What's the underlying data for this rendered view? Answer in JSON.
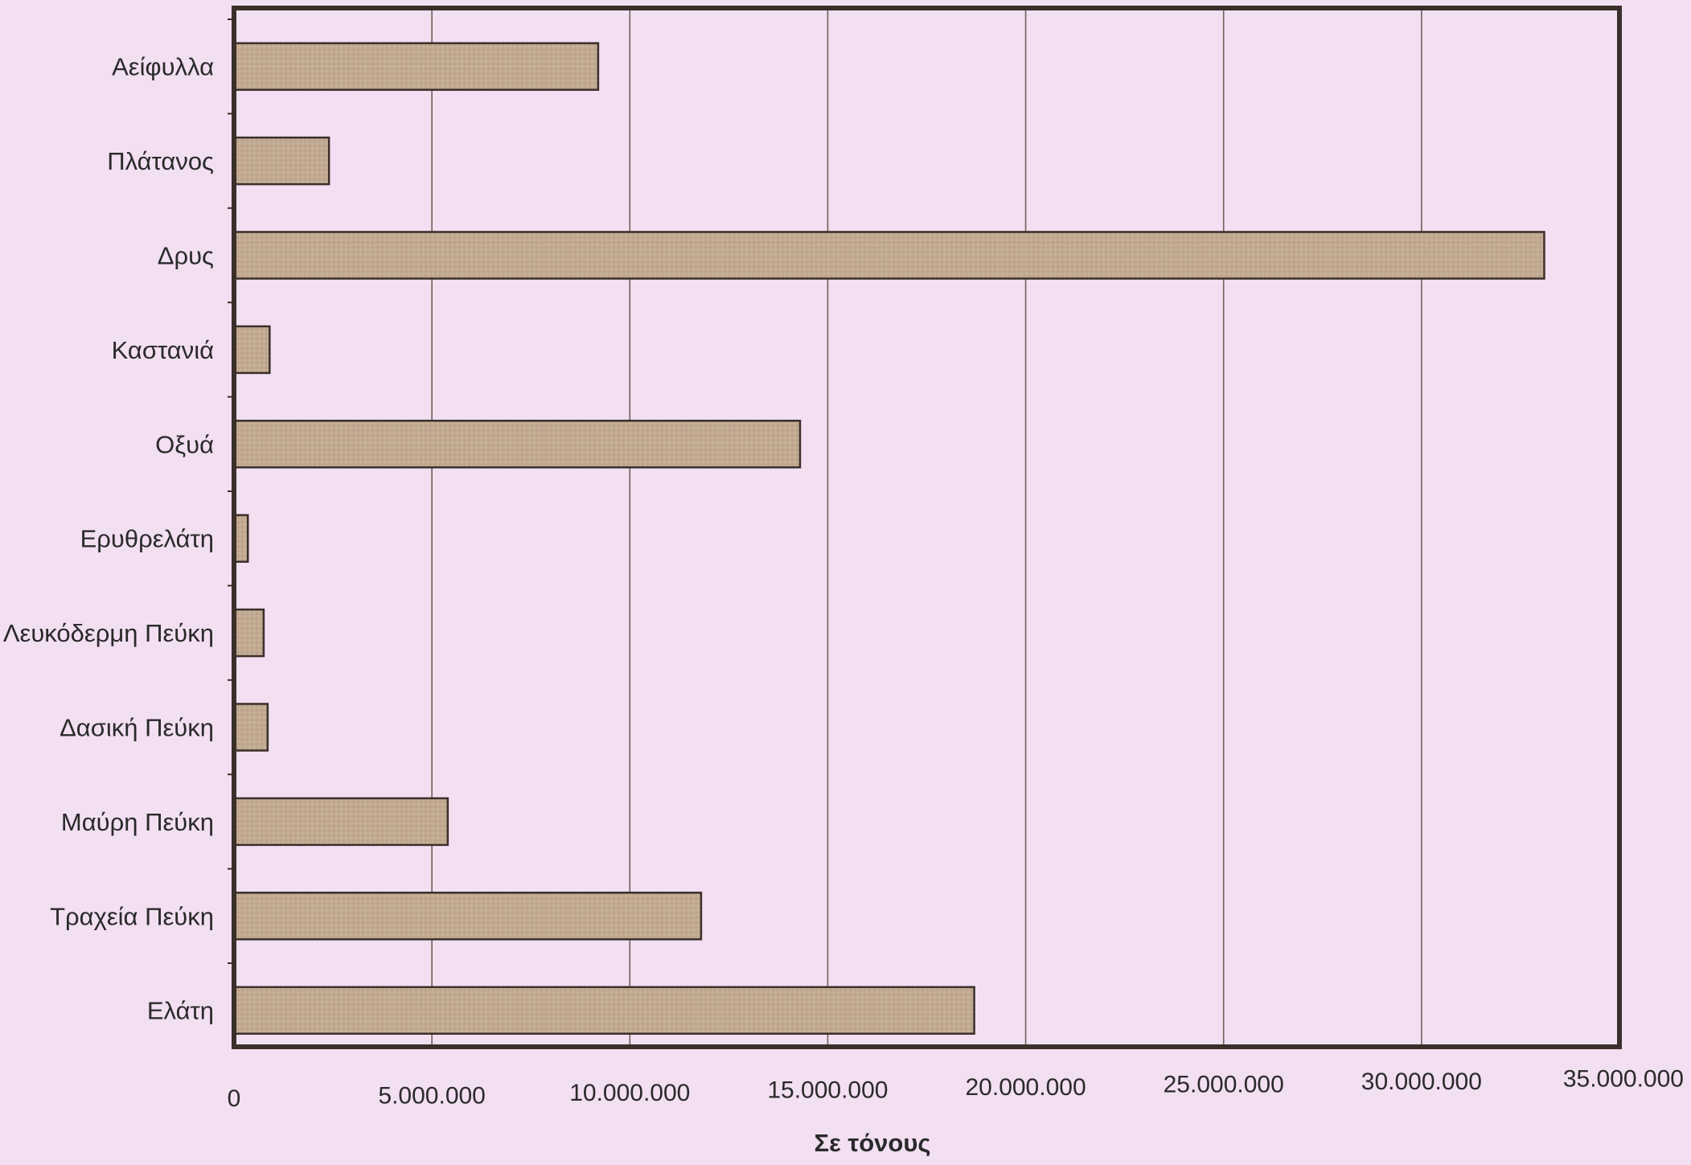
{
  "chart_data": {
    "type": "bar",
    "orientation": "horizontal",
    "categories": [
      "Αείφυλλα",
      "Πλάτανος",
      "Δρυς",
      "Καστανιά",
      "Οξυά",
      "Ερυθρελάτη",
      "Λευκόδερμη Πεύκη",
      "Δασική Πεύκη",
      "Μαύρη Πεύκη",
      "Τραχεία Πεύκη",
      "Ελάτη"
    ],
    "values": [
      9200000,
      2400000,
      33100000,
      900000,
      14300000,
      350000,
      750000,
      850000,
      5400000,
      11800000,
      18700000
    ],
    "title": "",
    "xlabel": "Σε τόνους",
    "ylabel": "",
    "xlim": [
      0,
      35000000
    ],
    "xticks": [
      0,
      5000000,
      10000000,
      15000000,
      20000000,
      25000000,
      30000000,
      35000000
    ],
    "xtick_labels": [
      "0",
      "5.000.000",
      "10.000.000",
      "15.000.000",
      "20.000.000",
      "25.000.000",
      "30.000.000",
      "35.000.000"
    ],
    "grid": "vertical",
    "legend": "none",
    "colors": {
      "background": "#f2dff2",
      "bar_fill": "#c0a890",
      "bar_stroke": "#3a2f2a",
      "frame": "#3a2f2a",
      "gridline": "#6e6258",
      "text": "#2a2a2a"
    }
  }
}
